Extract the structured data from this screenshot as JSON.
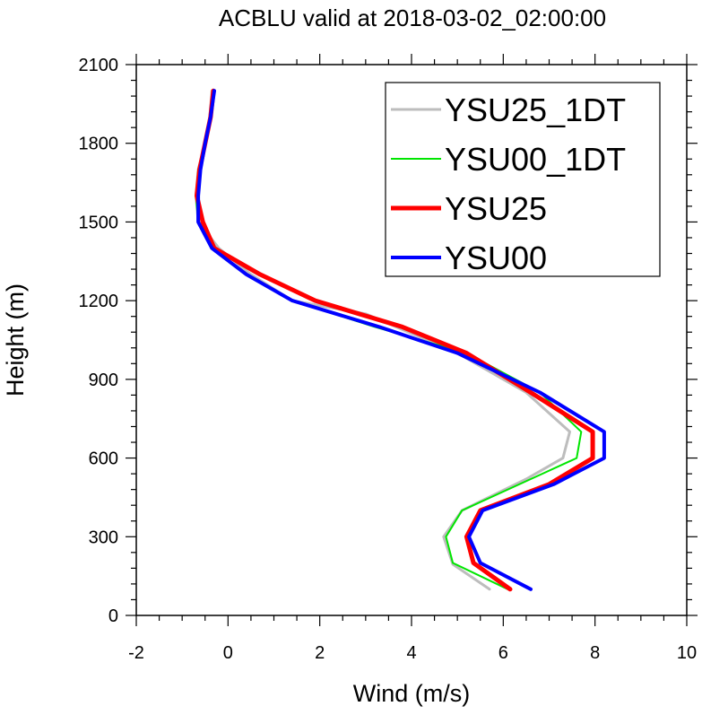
{
  "chart_data": {
    "type": "line",
    "title": "ACBLU valid at 2018-03-02_02:00:00",
    "xlabel": "Wind (m/s)",
    "ylabel": "Height (m)",
    "xlim": [
      -2,
      10
    ],
    "ylim": [
      0,
      2100
    ],
    "xticks": [
      -2,
      0,
      2,
      4,
      6,
      8,
      10
    ],
    "yticks": [
      0,
      300,
      600,
      900,
      1200,
      1500,
      1800,
      2100
    ],
    "grid": false,
    "legend": "top-right",
    "series": [
      {
        "name": "YSU25_1DT",
        "color": "#bdbdbd",
        "points": [
          [
            5.7,
            100
          ],
          [
            4.9,
            195
          ],
          [
            4.7,
            300
          ],
          [
            5.1,
            400
          ],
          [
            6.5,
            520
          ],
          [
            7.3,
            600
          ],
          [
            7.45,
            700
          ],
          [
            6.5,
            850
          ],
          [
            5.0,
            1000
          ],
          [
            3.0,
            1150
          ],
          [
            1.4,
            1200
          ],
          [
            0.5,
            1300
          ],
          [
            -0.2,
            1400
          ],
          [
            -0.65,
            1500
          ],
          [
            -0.7,
            1600
          ],
          [
            -0.65,
            1700
          ],
          [
            -0.5,
            1800
          ],
          [
            -0.4,
            1900
          ],
          [
            -0.35,
            2000
          ]
        ]
      },
      {
        "name": "YSU00_1DT",
        "color": "#00e600",
        "points": [
          [
            6.1,
            100
          ],
          [
            4.9,
            200
          ],
          [
            4.75,
            300
          ],
          [
            5.1,
            400
          ],
          [
            6.6,
            520
          ],
          [
            7.6,
            600
          ],
          [
            7.7,
            700
          ],
          [
            6.8,
            850
          ],
          [
            5.2,
            1000
          ],
          [
            3.2,
            1100
          ],
          [
            1.4,
            1200
          ],
          [
            0.4,
            1300
          ],
          [
            -0.35,
            1400
          ],
          [
            -0.65,
            1500
          ],
          [
            -0.7,
            1600
          ],
          [
            -0.65,
            1700
          ],
          [
            -0.5,
            1800
          ],
          [
            -0.4,
            1900
          ],
          [
            -0.32,
            2000
          ]
        ]
      },
      {
        "name": "YSU25",
        "color": "#ff0000",
        "points": [
          [
            6.15,
            100
          ],
          [
            5.35,
            200
          ],
          [
            5.2,
            300
          ],
          [
            5.5,
            400
          ],
          [
            7.0,
            500
          ],
          [
            7.95,
            600
          ],
          [
            7.95,
            700
          ],
          [
            6.6,
            850
          ],
          [
            5.2,
            1000
          ],
          [
            3.8,
            1100
          ],
          [
            1.9,
            1200
          ],
          [
            0.7,
            1300
          ],
          [
            -0.3,
            1400
          ],
          [
            -0.55,
            1500
          ],
          [
            -0.68,
            1600
          ],
          [
            -0.62,
            1700
          ],
          [
            -0.5,
            1800
          ],
          [
            -0.38,
            1900
          ],
          [
            -0.32,
            2000
          ]
        ]
      },
      {
        "name": "YSU00",
        "color": "#0000ff",
        "points": [
          [
            6.6,
            100
          ],
          [
            5.5,
            200
          ],
          [
            5.25,
            300
          ],
          [
            5.55,
            400
          ],
          [
            7.1,
            500
          ],
          [
            8.2,
            600
          ],
          [
            8.2,
            700
          ],
          [
            6.8,
            850
          ],
          [
            5.0,
            1000
          ],
          [
            3.3,
            1100
          ],
          [
            1.4,
            1200
          ],
          [
            0.4,
            1300
          ],
          [
            -0.35,
            1400
          ],
          [
            -0.65,
            1500
          ],
          [
            -0.65,
            1600
          ],
          [
            -0.6,
            1700
          ],
          [
            -0.5,
            1800
          ],
          [
            -0.38,
            1900
          ],
          [
            -0.3,
            2000
          ]
        ]
      }
    ]
  }
}
